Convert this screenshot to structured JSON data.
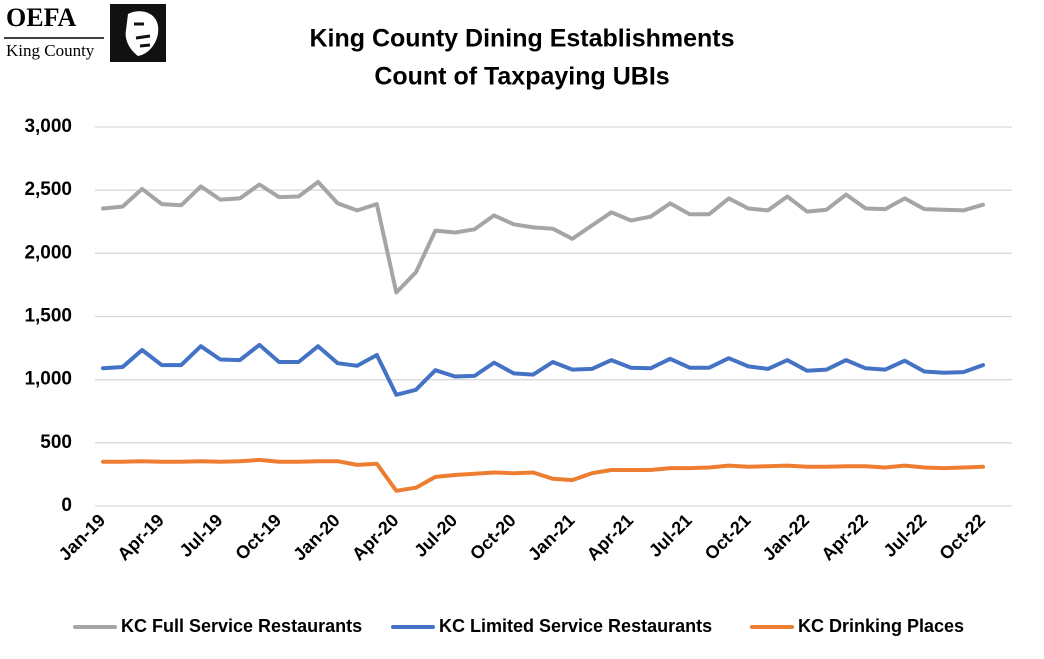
{
  "logo": {
    "title": "OEFA",
    "subtitle": "King County"
  },
  "chart_data": {
    "type": "line",
    "title": "King County Dining Establishments",
    "subtitle": "Count of Taxpaying UBIs",
    "categories": [
      "Jan-19",
      null,
      null,
      "Apr-19",
      null,
      null,
      "Jul-19",
      null,
      null,
      "Oct-19",
      null,
      null,
      "Jan-20",
      null,
      null,
      "Apr-20",
      null,
      null,
      "Jul-20",
      null,
      null,
      "Oct-20",
      null,
      null,
      "Jan-21",
      null,
      null,
      "Apr-21",
      null,
      null,
      "Jul-21",
      null,
      null,
      "Oct-21",
      null,
      null,
      "Jan-22",
      null,
      null,
      "Apr-22",
      null,
      null,
      "Jul-22",
      null,
      null,
      "Oct-22"
    ],
    "series": [
      {
        "name": "KC Full Service Restaurants",
        "color": "#a5a5a5",
        "values": [
          2355,
          2370,
          2510,
          2390,
          2380,
          2530,
          2425,
          2435,
          2545,
          2445,
          2450,
          2565,
          2395,
          2340,
          2390,
          1690,
          1850,
          2180,
          2165,
          2190,
          2300,
          2230,
          2205,
          2195,
          2115,
          2220,
          2325,
          2260,
          2290,
          2395,
          2310,
          2310,
          2435,
          2355,
          2340,
          2450,
          2330,
          2345,
          2465,
          2355,
          2350,
          2435,
          2350,
          2345,
          2340,
          2385
        ]
      },
      {
        "name": "KC Limited Service Restaurants",
        "color": "#4472c4",
        "values": [
          1090,
          1100,
          1235,
          1115,
          1115,
          1265,
          1160,
          1155,
          1275,
          1140,
          1140,
          1265,
          1130,
          1110,
          1195,
          880,
          920,
          1075,
          1025,
          1030,
          1135,
          1050,
          1040,
          1140,
          1080,
          1085,
          1155,
          1095,
          1090,
          1165,
          1095,
          1095,
          1170,
          1105,
          1085,
          1155,
          1070,
          1080,
          1155,
          1090,
          1080,
          1150,
          1065,
          1055,
          1060,
          1115
        ]
      },
      {
        "name": "KC Drinking Places",
        "color": "#ed7d31",
        "values": [
          350,
          350,
          355,
          350,
          350,
          355,
          350,
          355,
          365,
          350,
          350,
          355,
          355,
          325,
          335,
          120,
          145,
          230,
          245,
          255,
          265,
          260,
          265,
          215,
          205,
          260,
          285,
          285,
          285,
          300,
          300,
          305,
          320,
          310,
          315,
          320,
          310,
          310,
          315,
          315,
          305,
          320,
          305,
          300,
          305,
          310
        ]
      }
    ],
    "ylim": [
      0,
      3000
    ],
    "yticks": [
      0,
      500,
      {
        "value": 1000,
        "label": "1,000"
      },
      {
        "value": 1500,
        "label": "1,500"
      },
      {
        "value": 2000,
        "label": "2,000"
      },
      {
        "value": 2500,
        "label": "2,500"
      },
      {
        "value": 3000,
        "label": "3,000"
      }
    ],
    "grid": true,
    "legend": "bottom"
  }
}
